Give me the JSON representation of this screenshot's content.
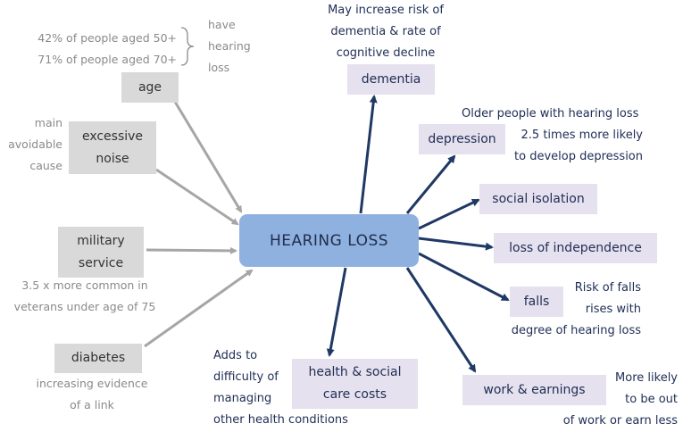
{
  "center": {
    "label": "HEARING LOSS"
  },
  "causes": {
    "age": {
      "label": "age",
      "stat_line1": "42% of people aged 50+",
      "stat_line2": "71% of people aged 70+",
      "brace_note": [
        "have",
        "hearing",
        "loss"
      ]
    },
    "noise": {
      "label_line1": "excessive",
      "label_line2": "noise",
      "note": [
        "main",
        "avoidable",
        "cause"
      ]
    },
    "military": {
      "label_line1": "military",
      "label_line2": "service",
      "note_line1": "3.5 x more common in",
      "note_line2": "veterans under age of 75"
    },
    "diabetes": {
      "label": "diabetes",
      "note_line1": "increasing evidence",
      "note_line2": "of a link"
    }
  },
  "effects": {
    "dementia": {
      "label": "dementia",
      "note": [
        "May increase risk of",
        "dementia & rate of",
        "cognitive decline"
      ]
    },
    "depression": {
      "label": "depression",
      "note_line1": "Older people with hearing loss",
      "note_line2": "2.5 times more likely",
      "note_line3": "to develop depression"
    },
    "isolation": {
      "label": "social isolation"
    },
    "independence": {
      "label": "loss of independence"
    },
    "falls": {
      "label": "falls",
      "note_line1": "Risk of falls",
      "note_line2": "rises with",
      "note_line3": "degree of hearing loss"
    },
    "work": {
      "label": "work & earnings",
      "note": [
        "More likely",
        "to be out",
        "of work or earn less"
      ]
    },
    "health": {
      "label_line1": "health & social",
      "label_line2": "care costs",
      "note": [
        "Adds to",
        "difficulty of",
        "managing",
        "other health conditions"
      ]
    }
  },
  "colors": {
    "center_fill": "#8fb1e0",
    "cause_fill": "#d9d9d9",
    "effect_fill": "#e6e1ee",
    "cause_arrow": "#a6a6a6",
    "effect_arrow": "#1f3864"
  }
}
